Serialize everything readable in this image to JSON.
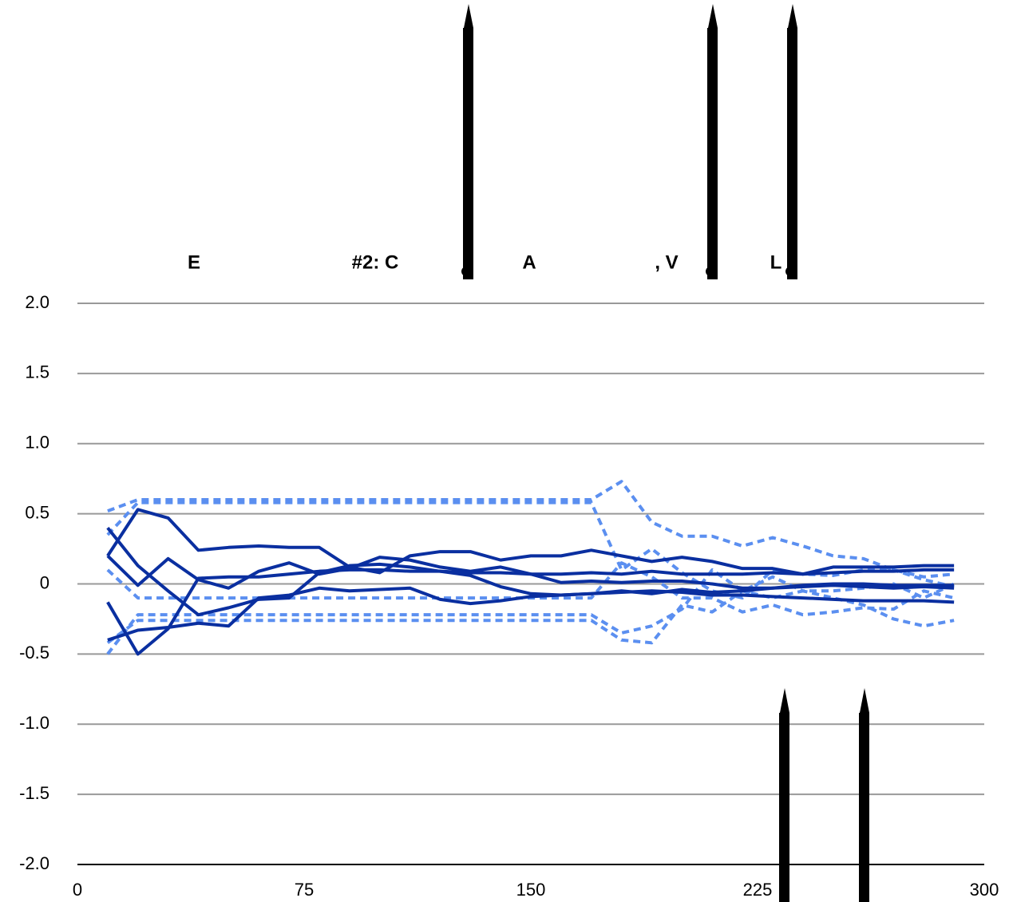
{
  "chart_data": {
    "type": "line",
    "annotations": [
      "E",
      "#2: C",
      "A",
      ", V",
      "L"
    ],
    "x": [
      10,
      20,
      30,
      40,
      50,
      60,
      70,
      80,
      90,
      100,
      110,
      120,
      130,
      140,
      150,
      160,
      170,
      180,
      190,
      200,
      210,
      220,
      230,
      240,
      250,
      260,
      270,
      280,
      290
    ],
    "xlim": [
      0,
      300
    ],
    "xticks": [
      0,
      75,
      150,
      225,
      300
    ],
    "ylim": [
      -2,
      2
    ],
    "yticks": [
      {
        "value": 2,
        "label": "2.0"
      },
      {
        "value": 1.5,
        "label": "1.5"
      },
      {
        "value": 1,
        "label": "1.0"
      },
      0.5,
      0,
      -0.5,
      {
        "value": -1,
        "label": "-1.0"
      },
      {
        "value": -1.5,
        "label": "-1.5"
      },
      {
        "value": -2,
        "label": "-2.0"
      }
    ],
    "grid": true,
    "series": [
      {
        "color": "#0a2fa0",
        "style": "solid",
        "values": [
          0.4,
          0.13,
          -0.05,
          -0.22,
          -0.17,
          -0.11,
          -0.1,
          0.08,
          0.13,
          0.14,
          0.12,
          0.09,
          0.06,
          -0.02,
          -0.07,
          -0.08,
          -0.07,
          -0.05,
          -0.07,
          -0.04,
          -0.06,
          -0.05,
          -0.03,
          -0.01,
          0,
          0,
          -0.01,
          -0.01,
          -0.01
        ]
      },
      {
        "color": "#0a2fa0",
        "style": "solid",
        "values": [
          0.2,
          -0.01,
          0.18,
          0.03,
          -0.03,
          0.09,
          0.15,
          0.07,
          0.11,
          0.19,
          0.17,
          0.12,
          0.09,
          0.12,
          0.07,
          0.01,
          0.02,
          0.01,
          0.02,
          0.02,
          0,
          -0.03,
          -0.03,
          -0.02,
          -0.01,
          -0.02,
          -0.03,
          -0.02,
          -0.03
        ]
      },
      {
        "color": "#0a2fa0",
        "style": "solid",
        "values": [
          -0.13,
          -0.5,
          -0.32,
          0.04,
          0.05,
          0.05,
          0.07,
          0.09,
          0.1,
          0.1,
          0.09,
          0.09,
          0.08,
          0.08,
          0.07,
          0.07,
          0.08,
          0.07,
          0.09,
          0.07,
          0.07,
          0.07,
          0.08,
          0.07,
          0.08,
          0.09,
          0.09,
          0.1,
          0.1
        ]
      },
      {
        "color": "#0a2fa0",
        "style": "solid",
        "values": [
          0.2,
          0.53,
          0.47,
          0.24,
          0.26,
          0.27,
          0.26,
          0.26,
          0.12,
          0.08,
          0.2,
          0.23,
          0.23,
          0.17,
          0.2,
          0.2,
          0.24,
          0.2,
          0.16,
          0.19,
          0.16,
          0.11,
          0.11,
          0.07,
          0.12,
          0.12,
          0.12,
          0.13,
          0.13
        ]
      },
      {
        "color": "#0a2fa0",
        "style": "solid",
        "values": [
          -0.4,
          -0.33,
          -0.31,
          -0.28,
          -0.3,
          -0.1,
          -0.08,
          -0.03,
          -0.05,
          -0.04,
          -0.03,
          -0.11,
          -0.14,
          -0.12,
          -0.09,
          -0.08,
          -0.07,
          -0.06,
          -0.05,
          -0.06,
          -0.08,
          -0.08,
          -0.09,
          -0.1,
          -0.11,
          -0.12,
          -0.12,
          -0.12,
          -0.13
        ]
      },
      {
        "color": "#5b8ff0",
        "style": "dashed",
        "values": [
          0.52,
          0.6,
          0.6,
          0.6,
          0.6,
          0.6,
          0.6,
          0.6,
          0.6,
          0.6,
          0.6,
          0.6,
          0.6,
          0.6,
          0.6,
          0.6,
          0.6,
          0.73,
          0.44,
          0.34,
          0.34,
          0.27,
          0.33,
          0.27,
          0.2,
          0.18,
          0.1,
          0.05,
          0.07
        ]
      },
      {
        "color": "#5b8ff0",
        "style": "dashed",
        "values": [
          0.35,
          0.58,
          0.58,
          0.58,
          0.58,
          0.58,
          0.58,
          0.58,
          0.58,
          0.58,
          0.58,
          0.58,
          0.58,
          0.58,
          0.58,
          0.58,
          0.58,
          0.1,
          0.25,
          0.08,
          -0.05,
          -0.1,
          0.1,
          0.07,
          0.06,
          0.1,
          0.1,
          0.03,
          -0.02
        ]
      },
      {
        "color": "#5b8ff0",
        "style": "dashed",
        "values": [
          0.1,
          -0.1,
          -0.1,
          -0.1,
          -0.1,
          -0.1,
          -0.1,
          -0.1,
          -0.1,
          -0.1,
          -0.1,
          -0.1,
          -0.1,
          -0.1,
          -0.1,
          -0.1,
          -0.1,
          0.15,
          0.05,
          -0.1,
          -0.1,
          -0.2,
          -0.15,
          -0.22,
          -0.2,
          -0.17,
          -0.18,
          -0.05,
          -0.1
        ]
      },
      {
        "color": "#5b8ff0",
        "style": "dashed",
        "values": [
          -0.5,
          -0.22,
          -0.22,
          -0.22,
          -0.22,
          -0.22,
          -0.22,
          -0.22,
          -0.22,
          -0.22,
          -0.22,
          -0.22,
          -0.22,
          -0.22,
          -0.22,
          -0.22,
          -0.22,
          -0.35,
          -0.3,
          -0.18,
          0.1,
          -0.05,
          0.05,
          -0.05,
          -0.1,
          -0.15,
          -0.25,
          -0.3,
          -0.26
        ]
      },
      {
        "color": "#5b8ff0",
        "style": "dashed",
        "values": [
          -0.42,
          -0.26,
          -0.26,
          -0.26,
          -0.26,
          -0.26,
          -0.26,
          -0.26,
          -0.26,
          -0.26,
          -0.26,
          -0.26,
          -0.26,
          -0.26,
          -0.26,
          -0.26,
          -0.26,
          -0.4,
          -0.42,
          -0.15,
          -0.2,
          -0.05,
          -0.1,
          -0.05,
          -0.05,
          -0.03,
          0,
          -0.1,
          0
        ]
      }
    ]
  }
}
